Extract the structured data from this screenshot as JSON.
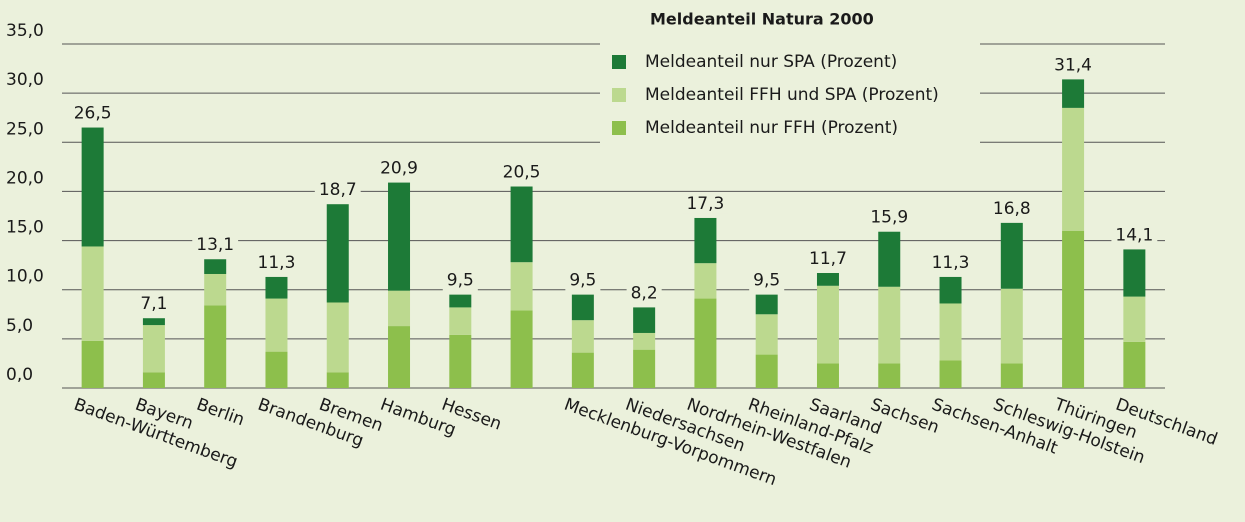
{
  "chart_data": {
    "type": "stacked_bar",
    "legend_title": "Meldeanteil Natura 2000",
    "categories": [
      "Baden-Württemberg",
      "Bayern",
      "Berlin",
      "Brandenburg",
      "Bremen",
      "Hamburg",
      "Hessen",
      null,
      "Mecklenburg-Vorpommern",
      "Niedersachsen",
      "Nordrhein-Westfalen",
      "Rheinland-Pfalz",
      "Saarland",
      "Sachsen",
      "Sachsen-Anhalt",
      "Schleswig-Holstein",
      "Thüringen",
      "Deutschland"
    ],
    "series": [
      {
        "name": "Meldeanteil nur FFH (Prozent)",
        "color": "#8dbf4c",
        "values": [
          4.8,
          1.6,
          8.4,
          3.7,
          1.6,
          6.3,
          5.4,
          7.9,
          3.6,
          3.9,
          9.1,
          3.4,
          2.5,
          2.5,
          2.8,
          2.5,
          16.0,
          4.7
        ]
      },
      {
        "name": "Meldeanteil FFH und SPA (Prozent)",
        "color": "#bcd98f",
        "values": [
          9.6,
          4.8,
          3.2,
          5.4,
          7.1,
          3.6,
          2.8,
          4.9,
          3.3,
          1.7,
          3.6,
          4.1,
          7.9,
          7.8,
          5.8,
          7.6,
          12.5,
          4.6
        ]
      },
      {
        "name": "Meldeanteil nur SPA (Prozent)",
        "color": "#1d7a37",
        "values": [
          12.1,
          0.7,
          1.5,
          2.2,
          10.0,
          11.0,
          1.3,
          7.7,
          2.6,
          2.6,
          4.6,
          2.0,
          1.3,
          5.6,
          2.7,
          6.7,
          2.9,
          4.8
        ]
      }
    ],
    "totals": [
      26.5,
      7.1,
      13.1,
      11.3,
      18.7,
      20.9,
      9.5,
      20.5,
      9.5,
      8.2,
      17.3,
      9.5,
      11.7,
      15.9,
      11.3,
      16.8,
      31.4,
      14.1
    ],
    "value_labels": [
      "26,5",
      "7,1",
      "13,1",
      "11,3",
      "18,7",
      "20,9",
      "9,5",
      "20,5",
      "9,5",
      "8,2",
      "17,3",
      "9,5",
      "11,7",
      "15,9",
      "11,3",
      "16,8",
      "31,4",
      "14,1"
    ],
    "ylim": [
      0,
      35
    ],
    "yticks": [
      {
        "value": 0,
        "label": "0,0"
      },
      {
        "value": 5,
        "label": "5,0"
      },
      {
        "value": 10,
        "label": "10,0"
      },
      {
        "value": 15,
        "label": "15,0"
      },
      {
        "value": 20,
        "label": "20,0"
      },
      {
        "value": 25,
        "label": "25,0"
      },
      {
        "value": 30,
        "label": "30,0"
      },
      {
        "value": 35,
        "label": "35,0"
      }
    ],
    "grid": true
  }
}
